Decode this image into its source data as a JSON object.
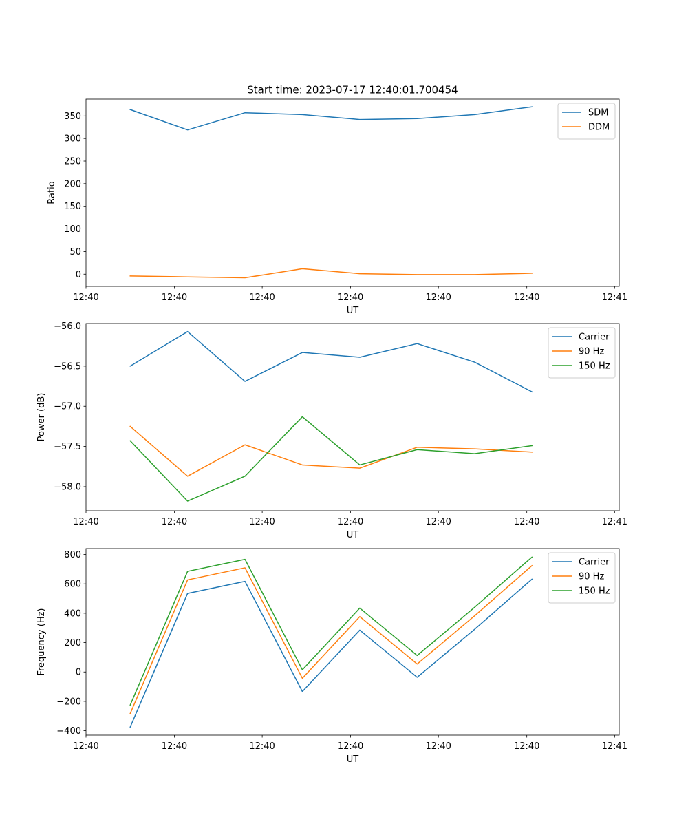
{
  "figure_title": "Start time: 2023-07-17 12:40:01.700454",
  "colors": {
    "c0": "#1f77b4",
    "c1": "#ff7f0e",
    "c2": "#2ca02c"
  },
  "chart_data": [
    {
      "type": "line",
      "title": "Start time: 2023-07-17 12:40:01.700454",
      "xlabel": "UT",
      "ylabel": "Ratio",
      "x_index": [
        0,
        1,
        2,
        3,
        4,
        5,
        6,
        7
      ],
      "xlim": [
        -0.77,
        8.52
      ],
      "xticks": [
        -0.77,
        0.77,
        2.3,
        3.84,
        5.37,
        6.91,
        8.44
      ],
      "xtick_labels": [
        "12:40",
        "12:40",
        "12:40",
        "12:40",
        "12:40",
        "12:40",
        "12:41"
      ],
      "ylim": [
        -27,
        387
      ],
      "yticks": [
        0,
        50,
        100,
        150,
        200,
        250,
        300,
        350
      ],
      "ytick_labels": [
        "0",
        "50",
        "100",
        "150",
        "200",
        "250",
        "300",
        "350"
      ],
      "legend_loc": "top-right",
      "series": [
        {
          "name": "SDM",
          "color": "#1f77b4",
          "values": [
            364,
            319,
            357,
            353,
            342,
            344,
            353,
            370
          ]
        },
        {
          "name": "DDM",
          "color": "#ff7f0e",
          "values": [
            -4,
            -6,
            -8,
            12,
            1,
            -1,
            -1,
            2
          ]
        }
      ]
    },
    {
      "type": "line",
      "xlabel": "UT",
      "ylabel": "Power (dB)",
      "x_index": [
        0,
        1,
        2,
        3,
        4,
        5,
        6,
        7
      ],
      "xlim": [
        -0.77,
        8.52
      ],
      "xticks": [
        -0.77,
        0.77,
        2.3,
        3.84,
        5.37,
        6.91,
        8.44
      ],
      "xtick_labels": [
        "12:40",
        "12:40",
        "12:40",
        "12:40",
        "12:40",
        "12:40",
        "12:41"
      ],
      "ylim": [
        -58.3,
        -55.97
      ],
      "yticks": [
        -58.0,
        -57.5,
        -57.0,
        -56.5,
        -56.0
      ],
      "ytick_labels": [
        "−58.0",
        "−57.5",
        "−57.0",
        "−56.5",
        "−56.0"
      ],
      "legend_loc": "top-right",
      "series": [
        {
          "name": "Carrier",
          "color": "#1f77b4",
          "values": [
            -56.5,
            -56.07,
            -56.69,
            -56.33,
            -56.39,
            -56.22,
            -56.45,
            -56.82
          ]
        },
        {
          "name": "90 Hz",
          "color": "#ff7f0e",
          "values": [
            -57.25,
            -57.87,
            -57.48,
            -57.73,
            -57.77,
            -57.51,
            -57.53,
            -57.57
          ]
        },
        {
          "name": "150 Hz",
          "color": "#2ca02c",
          "values": [
            -57.43,
            -58.18,
            -57.87,
            -57.13,
            -57.73,
            -57.54,
            -57.59,
            -57.49
          ]
        }
      ]
    },
    {
      "type": "line",
      "xlabel": "UT",
      "ylabel": "Frequency (Hz)",
      "x_index": [
        0,
        1,
        2,
        3,
        4,
        5,
        6,
        7
      ],
      "xlim": [
        -0.77,
        8.52
      ],
      "xticks": [
        -0.77,
        0.77,
        2.3,
        3.84,
        5.37,
        6.91,
        8.44
      ],
      "xtick_labels": [
        "12:40",
        "12:40",
        "12:40",
        "12:40",
        "12:40",
        "12:40",
        "12:41"
      ],
      "ylim": [
        -430,
        840
      ],
      "yticks": [
        -400,
        -200,
        0,
        200,
        400,
        600,
        800
      ],
      "ytick_labels": [
        "−400",
        "−200",
        "0",
        "200",
        "400",
        "600",
        "800"
      ],
      "legend_loc": "top-right",
      "series": [
        {
          "name": "Carrier",
          "color": "#1f77b4",
          "values": [
            -375,
            535,
            617,
            -133,
            285,
            -36,
            290,
            632
          ]
        },
        {
          "name": "90 Hz",
          "color": "#ff7f0e",
          "values": [
            -283,
            627,
            709,
            -43,
            377,
            54,
            382,
            724
          ]
        },
        {
          "name": "150 Hz",
          "color": "#2ca02c",
          "values": [
            -225,
            685,
            767,
            15,
            435,
            112,
            440,
            782
          ]
        }
      ]
    }
  ]
}
